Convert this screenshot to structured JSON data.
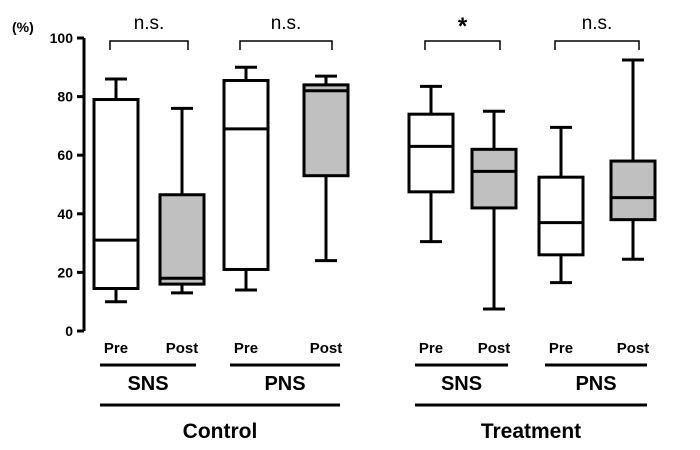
{
  "chart_data": {
    "type": "box",
    "ylabel": "(%)",
    "ylim": [
      0,
      100
    ],
    "yticks": [
      0,
      20,
      40,
      60,
      80,
      100
    ],
    "colors": {
      "pre_fill": "#ffffff",
      "post_fill": "#c0c0c0",
      "stroke": "#000000"
    },
    "groups": [
      {
        "label": "Control",
        "subgroups": [
          {
            "label": "SNS",
            "significance": "n.s.",
            "boxes": [
              {
                "label": "Pre",
                "fill": "pre",
                "min": 10,
                "q1": 14.5,
                "median": 31,
                "q3": 79,
                "max": 86
              },
              {
                "label": "Post",
                "fill": "post",
                "min": 13,
                "q1": 16,
                "median": 18,
                "q3": 46.5,
                "max": 76
              }
            ]
          },
          {
            "label": "PNS",
            "significance": "n.s.",
            "boxes": [
              {
                "label": "Pre",
                "fill": "pre",
                "min": 14,
                "q1": 21,
                "median": 69,
                "q3": 85.5,
                "max": 90
              },
              {
                "label": "Post",
                "fill": "post",
                "min": 24,
                "q1": 53,
                "median": 82,
                "q3": 84,
                "max": 87
              }
            ]
          }
        ]
      },
      {
        "label": "Treatment",
        "subgroups": [
          {
            "label": "SNS",
            "significance": "*",
            "boxes": [
              {
                "label": "Pre",
                "fill": "pre",
                "min": 30.5,
                "q1": 47.5,
                "median": 63,
                "q3": 74,
                "max": 83.5
              },
              {
                "label": "Post",
                "fill": "post",
                "min": 7.5,
                "q1": 42,
                "median": 54.5,
                "q3": 62,
                "max": 75
              }
            ]
          },
          {
            "label": "PNS",
            "significance": "n.s.",
            "boxes": [
              {
                "label": "Pre",
                "fill": "pre",
                "min": 16.5,
                "q1": 26,
                "median": 37,
                "q3": 52.5,
                "max": 69.5
              },
              {
                "label": "Post",
                "fill": "post",
                "min": 24.5,
                "q1": 38,
                "median": 45.5,
                "q3": 58,
                "max": 92.5
              }
            ]
          }
        ]
      }
    ]
  }
}
